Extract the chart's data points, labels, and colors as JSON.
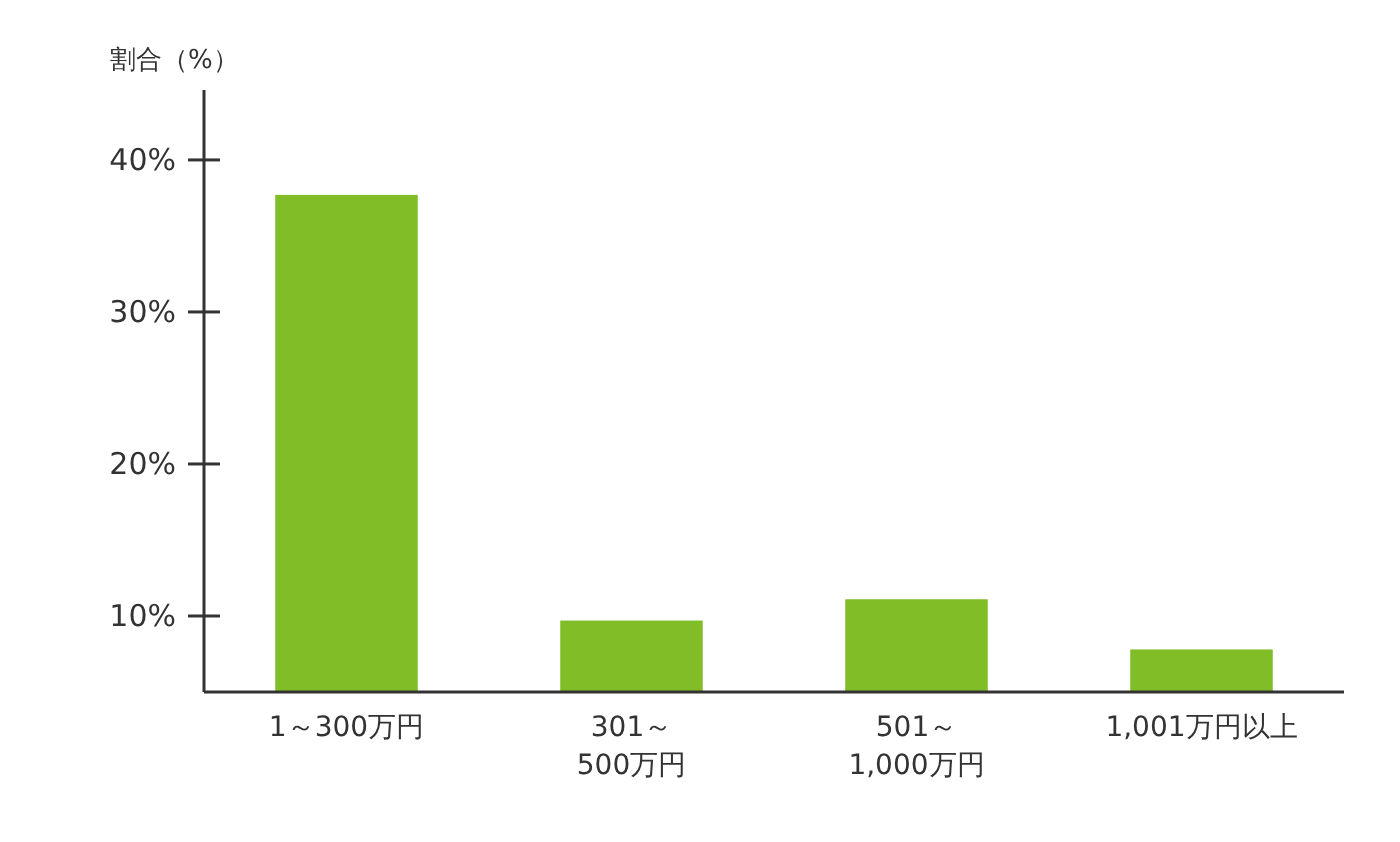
{
  "chart_data": {
    "type": "bar",
    "ylabel": "割合（%）",
    "categories": [
      "1～300万円",
      "301～\n500万円",
      "501～\n1,000万円",
      "1,001万円以上"
    ],
    "values": [
      37.7,
      9.7,
      11.1,
      7.8
    ],
    "color": "#80bd27",
    "ylim": [
      5,
      44.6
    ],
    "yticks": [
      {
        "value": 10,
        "label": "10%"
      },
      {
        "value": 20,
        "label": "20%"
      },
      {
        "value": 30,
        "label": "30%"
      },
      {
        "value": 40,
        "label": "40%"
      }
    ],
    "grid": false
  }
}
